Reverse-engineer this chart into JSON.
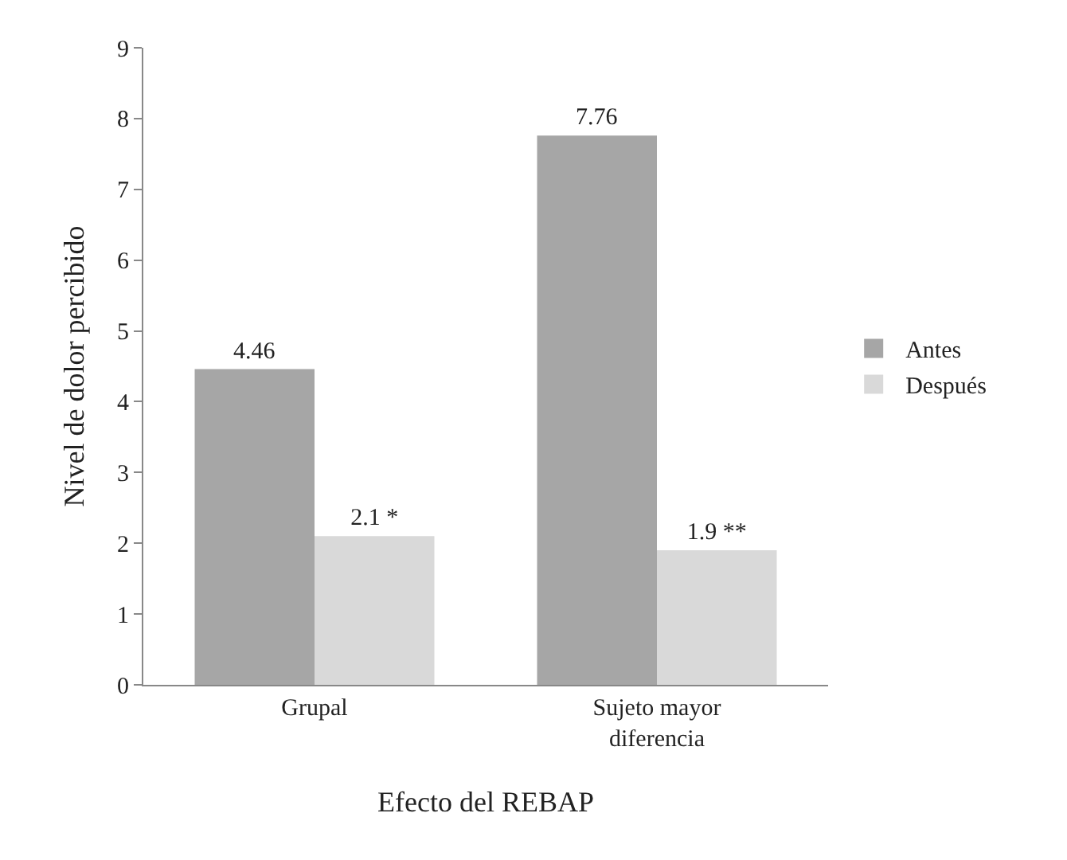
{
  "chart_data": {
    "type": "bar",
    "xlabel": "Efecto del REBAP",
    "ylabel": "Nivel de dolor percibido",
    "categories": [
      "Grupal",
      "Sujeto mayor diferencia"
    ],
    "series": [
      {
        "name": "Antes",
        "color": "#a6a6a6",
        "values": [
          4.46,
          7.76
        ],
        "value_labels": [
          "4.46",
          "7.76"
        ]
      },
      {
        "name": "Después",
        "color": "#d9d9d9",
        "values": [
          2.1,
          1.9
        ],
        "value_labels": [
          "2.1 *",
          "1.9 **"
        ]
      }
    ],
    "ylim": [
      0,
      9
    ],
    "yticks": [
      0,
      1,
      2,
      3,
      4,
      5,
      6,
      7,
      8,
      9
    ],
    "legend": "right"
  }
}
